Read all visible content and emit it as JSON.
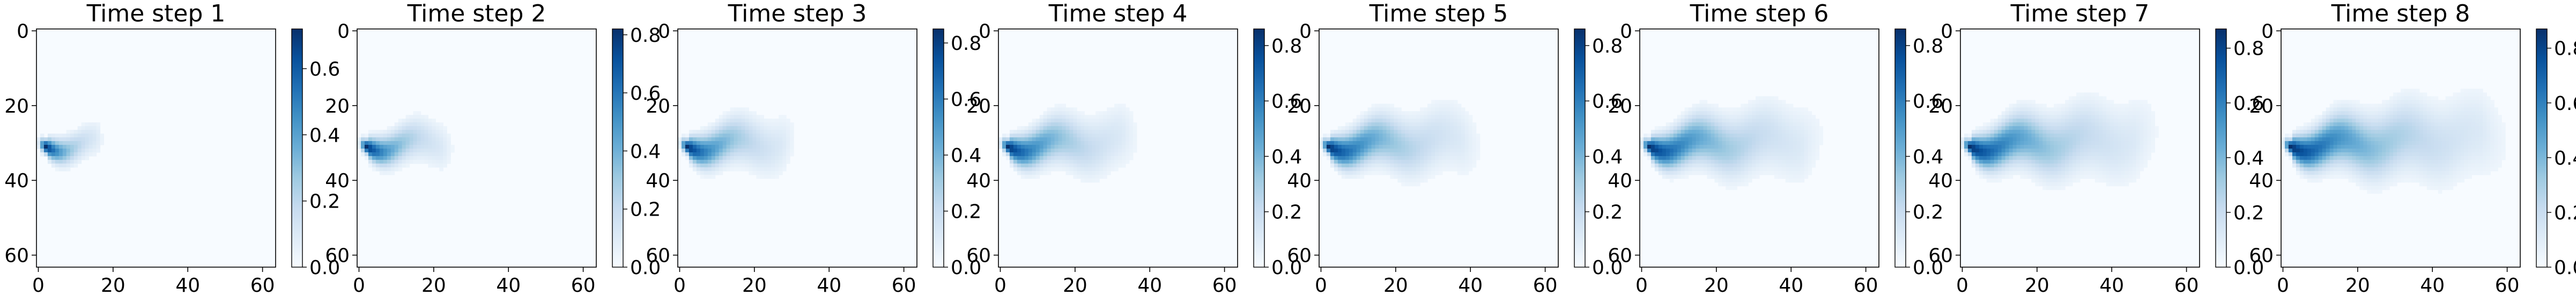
{
  "chart_data": [
    {
      "type": "heatmap",
      "title": "Time step 1",
      "colormap": "Blues",
      "xlim": [
        0,
        63
      ],
      "ylim": [
        63,
        0
      ],
      "xticks": [
        "0",
        "20",
        "40",
        "60"
      ],
      "yticks": [
        "0",
        "20",
        "40",
        "60"
      ],
      "colorbar": {
        "min": 0.0,
        "max": 0.72,
        "ticks": [
          "0.0",
          "0.2",
          "0.4",
          "0.6"
        ]
      },
      "plume": {
        "source_x": 2,
        "source_y": 31,
        "peak": 0.72,
        "length": 16,
        "half_width": 6
      }
    },
    {
      "type": "heatmap",
      "title": "Time step 2",
      "colormap": "Blues",
      "xlim": [
        0,
        63
      ],
      "ylim": [
        63,
        0
      ],
      "xticks": [
        "0",
        "20",
        "40",
        "60"
      ],
      "yticks": [
        "0",
        "20",
        "40",
        "60"
      ],
      "colorbar": {
        "min": 0.0,
        "max": 0.82,
        "ticks": [
          "0.0",
          "0.2",
          "0.4",
          "0.6",
          "0.8"
        ]
      },
      "plume": {
        "source_x": 2,
        "source_y": 31,
        "peak": 0.82,
        "length": 24,
        "half_width": 8
      }
    },
    {
      "type": "heatmap",
      "title": "Time step 3",
      "colormap": "Blues",
      "xlim": [
        0,
        63
      ],
      "ylim": [
        63,
        0
      ],
      "xticks": [
        "0",
        "20",
        "40",
        "60"
      ],
      "yticks": [
        "0",
        "20",
        "40",
        "60"
      ],
      "colorbar": {
        "min": 0.0,
        "max": 0.85,
        "ticks": [
          "0.0",
          "0.2",
          "0.4",
          "0.6",
          "0.8"
        ]
      },
      "plume": {
        "source_x": 2,
        "source_y": 31,
        "peak": 0.85,
        "length": 30,
        "half_width": 10
      }
    },
    {
      "type": "heatmap",
      "title": "Time step 4",
      "colormap": "Blues",
      "xlim": [
        0,
        63
      ],
      "ylim": [
        63,
        0
      ],
      "xticks": [
        "0",
        "20",
        "40",
        "60"
      ],
      "yticks": [
        "0",
        "20",
        "40",
        "60"
      ],
      "colorbar": {
        "min": 0.0,
        "max": 0.86,
        "ticks": [
          "0.0",
          "0.2",
          "0.4",
          "0.6",
          "0.8"
        ]
      },
      "plume": {
        "source_x": 2,
        "source_y": 31,
        "peak": 0.86,
        "length": 36,
        "half_width": 11
      }
    },
    {
      "type": "heatmap",
      "title": "Time step 5",
      "colormap": "Blues",
      "xlim": [
        0,
        63
      ],
      "ylim": [
        63,
        0
      ],
      "xticks": [
        "0",
        "20",
        "40",
        "60"
      ],
      "yticks": [
        "0",
        "20",
        "40",
        "60"
      ],
      "colorbar": {
        "min": 0.0,
        "max": 0.86,
        "ticks": [
          "0.0",
          "0.2",
          "0.4",
          "0.6",
          "0.8"
        ]
      },
      "plume": {
        "source_x": 2,
        "source_y": 31,
        "peak": 0.86,
        "length": 42,
        "half_width": 12
      }
    },
    {
      "type": "heatmap",
      "title": "Time step 6",
      "colormap": "Blues",
      "xlim": [
        0,
        63
      ],
      "ylim": [
        63,
        0
      ],
      "xticks": [
        "0",
        "20",
        "40",
        "60"
      ],
      "yticks": [
        "0",
        "20",
        "40",
        "60"
      ],
      "colorbar": {
        "min": 0.0,
        "max": 0.86,
        "ticks": [
          "0.0",
          "0.2",
          "0.4",
          "0.6",
          "0.8"
        ]
      },
      "plume": {
        "source_x": 2,
        "source_y": 31,
        "peak": 0.86,
        "length": 48,
        "half_width": 13
      }
    },
    {
      "type": "heatmap",
      "title": "Time step 7",
      "colormap": "Blues",
      "xlim": [
        0,
        63
      ],
      "ylim": [
        63,
        0
      ],
      "xticks": [
        "0",
        "20",
        "40",
        "60"
      ],
      "yticks": [
        "0",
        "20",
        "40",
        "60"
      ],
      "colorbar": {
        "min": 0.0,
        "max": 0.87,
        "ticks": [
          "0.0",
          "0.2",
          "0.4",
          "0.6",
          "0.8"
        ]
      },
      "plume": {
        "source_x": 2,
        "source_y": 31,
        "peak": 0.87,
        "length": 52,
        "half_width": 14
      }
    },
    {
      "type": "heatmap",
      "title": "Time step 8",
      "colormap": "Blues",
      "xlim": [
        0,
        63
      ],
      "ylim": [
        63,
        0
      ],
      "xticks": [
        "0",
        "20",
        "40",
        "60"
      ],
      "yticks": [
        "0",
        "20",
        "40",
        "60"
      ],
      "colorbar": {
        "min": 0.0,
        "max": 0.87,
        "ticks": [
          "0.0",
          "0.2",
          "0.4",
          "0.6",
          "0.8"
        ]
      },
      "plume": {
        "source_x": 2,
        "source_y": 31,
        "peak": 0.87,
        "length": 60,
        "half_width": 15
      }
    }
  ]
}
